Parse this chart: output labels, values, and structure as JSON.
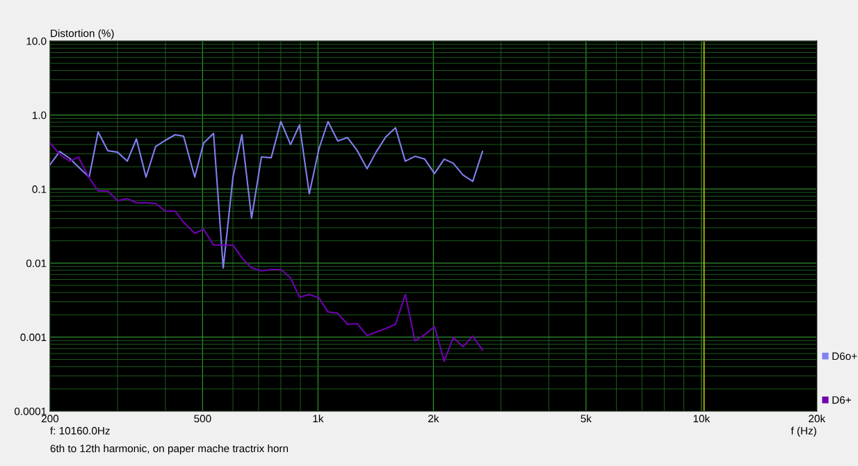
{
  "chart_data": {
    "type": "line",
    "ylabel": "Distortion (%)",
    "xlabel": "f (Hz)",
    "annotations": [
      "f: 10160.0Hz",
      "6th to 12th harmonic, on paper mache tractrix horn"
    ],
    "log": "xy",
    "x": [
      200,
      212,
      225,
      237,
      253,
      267,
      283,
      300,
      318,
      336,
      356,
      377,
      400,
      424,
      446,
      477,
      503,
      534,
      566,
      600,
      633,
      671,
      712,
      755,
      800,
      848,
      895,
      949,
      1006,
      1062,
      1126,
      1194,
      1266,
      1343,
      1417,
      1503,
      1593,
      1689,
      1790,
      1898,
      2013,
      2134,
      2253,
      2388,
      2533,
      2685
    ],
    "series": [
      {
        "name": "D6o+",
        "color": "#8080f0",
        "values": [
          0.214,
          0.322,
          0.26,
          0.2,
          0.145,
          0.59,
          0.33,
          0.315,
          0.238,
          0.476,
          0.145,
          0.375,
          0.456,
          0.542,
          0.519,
          0.145,
          0.418,
          0.565,
          0.0086,
          0.145,
          0.542,
          0.0405,
          0.271,
          0.265,
          0.817,
          0.4,
          0.733,
          0.0863,
          0.352,
          0.817,
          0.446,
          0.497,
          0.33,
          0.188,
          0.315,
          0.508,
          0.672,
          0.238,
          0.277,
          0.254,
          0.162,
          0.254,
          0.223,
          0.155,
          0.127,
          0.322
        ]
      },
      {
        "name": "D6+",
        "color": "#7000b0",
        "values": [
          0.418,
          0.296,
          0.238,
          0.271,
          0.142,
          0.0942,
          0.0942,
          0.0695,
          0.0743,
          0.0652,
          0.0652,
          0.0638,
          0.0503,
          0.0503,
          0.0356,
          0.0252,
          0.0287,
          0.0175,
          0.0175,
          0.0175,
          0.0118,
          0.0086,
          0.00785,
          0.0082,
          0.0082,
          0.0063,
          0.00346,
          0.00377,
          0.00338,
          0.00219,
          0.0021,
          0.00149,
          0.00152,
          0.00105,
          0.00117,
          0.00131,
          0.00149,
          0.00377,
          0.00089,
          0.00108,
          0.00139,
          0.00047,
          0.00099,
          0.00074,
          0.00103,
          0.00067
        ]
      }
    ],
    "xlim": [
      200,
      20000
    ],
    "xticks": [
      200,
      {
        "value": 300,
        "label": null
      },
      {
        "value": 400,
        "label": null
      },
      500,
      {
        "value": 600,
        "label": null
      },
      {
        "value": 700,
        "label": null
      },
      {
        "value": 800,
        "label": null
      },
      {
        "value": 900,
        "label": null
      },
      {
        "value": 1000,
        "label": "1k"
      },
      {
        "value": 2000,
        "label": "2k"
      },
      {
        "value": 3000,
        "label": null
      },
      {
        "value": 4000,
        "label": null
      },
      {
        "value": 5000,
        "label": "5k"
      },
      {
        "value": 6000,
        "label": null
      },
      {
        "value": 7000,
        "label": null
      },
      {
        "value": 8000,
        "label": null
      },
      {
        "value": 9000,
        "label": null
      },
      {
        "value": 10000,
        "label": "10k"
      },
      {
        "value": 20000,
        "label": "20k"
      }
    ],
    "ylim": [
      0.0001,
      10
    ],
    "yticks": [
      0.0001,
      {
        "value": 0.0002,
        "label": null
      },
      {
        "value": 0.0003,
        "label": null
      },
      {
        "value": 0.0004,
        "label": null
      },
      {
        "value": 0.0005,
        "label": null
      },
      {
        "value": 0.0006,
        "label": null
      },
      {
        "value": 0.0007,
        "label": null
      },
      {
        "value": 0.0008,
        "label": null
      },
      {
        "value": 0.0009,
        "label": null
      },
      0.001,
      {
        "value": 0.002,
        "label": null
      },
      {
        "value": 0.003,
        "label": null
      },
      {
        "value": 0.004,
        "label": null
      },
      {
        "value": 0.005,
        "label": null
      },
      {
        "value": 0.006,
        "label": null
      },
      {
        "value": 0.007,
        "label": null
      },
      {
        "value": 0.008,
        "label": null
      },
      {
        "value": 0.009,
        "label": null
      },
      0.01,
      {
        "value": 0.02,
        "label": null
      },
      {
        "value": 0.03,
        "label": null
      },
      {
        "value": 0.04,
        "label": null
      },
      {
        "value": 0.05,
        "label": null
      },
      {
        "value": 0.06,
        "label": null
      },
      {
        "value": 0.07,
        "label": null
      },
      {
        "value": 0.08,
        "label": null
      },
      {
        "value": 0.09,
        "label": null
      },
      {
        "value": 0.1,
        "label": "0.1"
      },
      {
        "value": 0.2,
        "label": null
      },
      {
        "value": 0.3,
        "label": null
      },
      {
        "value": 0.4,
        "label": null
      },
      {
        "value": 0.5,
        "label": null
      },
      {
        "value": 0.6,
        "label": null
      },
      {
        "value": 0.7,
        "label": null
      },
      {
        "value": 0.8,
        "label": null
      },
      {
        "value": 0.9,
        "label": null
      },
      {
        "value": 1,
        "label": "1.0"
      },
      {
        "value": 2,
        "label": null
      },
      {
        "value": 3,
        "label": null
      },
      {
        "value": 4,
        "label": null
      },
      {
        "value": 5,
        "label": null
      },
      {
        "value": 6,
        "label": null
      },
      {
        "value": 7,
        "label": null
      },
      {
        "value": 8,
        "label": null
      },
      {
        "value": 9,
        "label": null
      },
      {
        "value": 10,
        "label": "10.0"
      }
    ],
    "ref_lines": [
      {
        "axis": "x",
        "value": 10160,
        "label": null,
        "color": "#c8c800"
      }
    ],
    "grid": true,
    "legend": "right",
    "marker": "none",
    "line_style": "solid"
  }
}
